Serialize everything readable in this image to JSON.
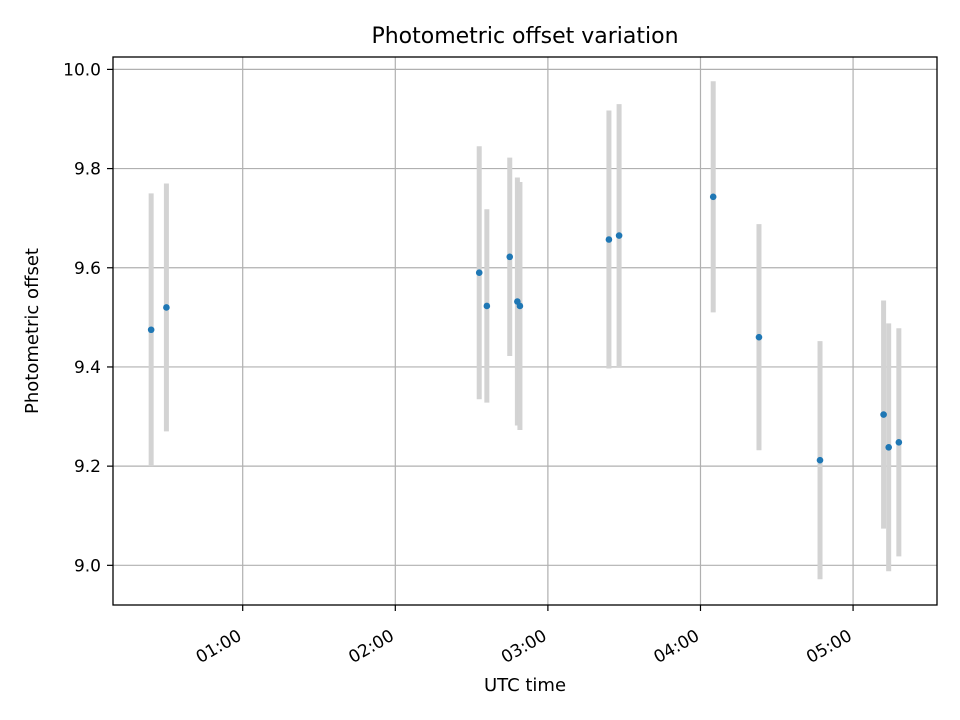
{
  "chart_data": {
    "type": "scatter",
    "title": "Photometric offset variation",
    "xlabel": "UTC time",
    "ylabel": "Photometric offset",
    "xlim": [
      "00:09",
      "05:33"
    ],
    "ylim": [
      8.92,
      10.025
    ],
    "x_ticks": [
      "01:00",
      "02:00",
      "03:00",
      "04:00",
      "05:00"
    ],
    "y_ticks": [
      "9.0",
      "9.2",
      "9.4",
      "9.6",
      "9.8",
      "10.0"
    ],
    "grid": true,
    "marker_color": "#1f77b4",
    "errorbar_color": "#d3d3d3",
    "points": [
      {
        "x": "00:24",
        "y": 9.475,
        "err": 0.275
      },
      {
        "x": "00:30",
        "y": 9.52,
        "err": 0.25
      },
      {
        "x": "02:33",
        "y": 9.59,
        "err": 0.255
      },
      {
        "x": "02:36",
        "y": 9.523,
        "err": 0.195
      },
      {
        "x": "02:45",
        "y": 9.622,
        "err": 0.2
      },
      {
        "x": "02:48",
        "y": 9.532,
        "err": 0.25
      },
      {
        "x": "02:49",
        "y": 9.523,
        "err": 0.25
      },
      {
        "x": "03:24",
        "y": 9.657,
        "err": 0.26
      },
      {
        "x": "03:28",
        "y": 9.665,
        "err": 0.265
      },
      {
        "x": "04:05",
        "y": 9.743,
        "err": 0.233
      },
      {
        "x": "04:23",
        "y": 9.46,
        "err": 0.228
      },
      {
        "x": "04:47",
        "y": 9.212,
        "err": 0.24
      },
      {
        "x": "05:12",
        "y": 9.304,
        "err": 0.23
      },
      {
        "x": "05:14",
        "y": 9.238,
        "err": 0.25
      },
      {
        "x": "05:18",
        "y": 9.248,
        "err": 0.23
      }
    ]
  }
}
